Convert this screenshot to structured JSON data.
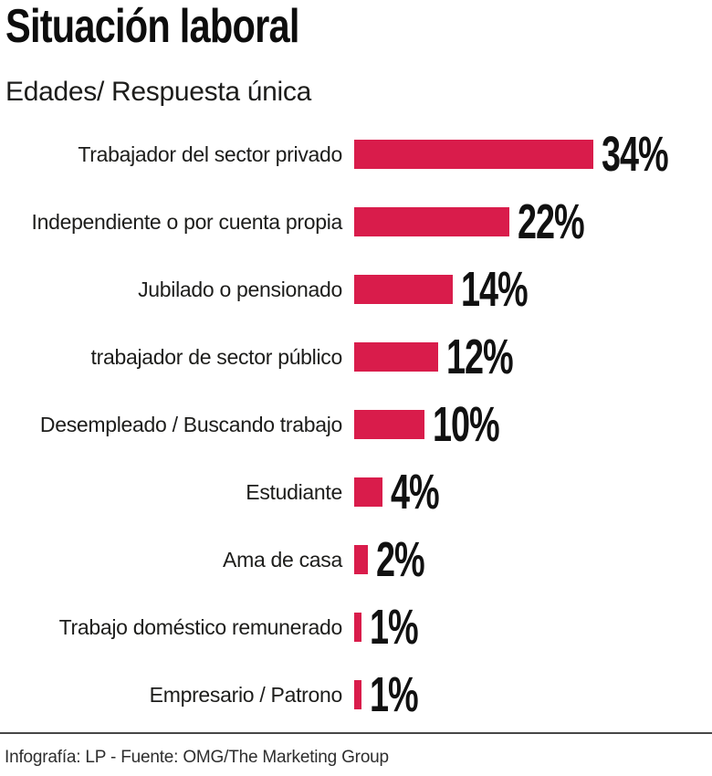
{
  "header": {
    "title": "Situación laboral",
    "subtitle": "Edades/ Respuesta única"
  },
  "chart_data": {
    "type": "bar",
    "orientation": "horizontal",
    "title": "Situación laboral",
    "subtitle": "Edades/ Respuesta única",
    "categories": [
      "Trabajador del sector privado",
      "Independiente o por cuenta propia",
      "Jubilado o pensionado",
      "trabajador de sector público",
      "Desempleado / Buscando trabajo",
      "Estudiante",
      "Ama de casa",
      "Trabajo doméstico remunerado",
      "Empresario / Patrono"
    ],
    "values": [
      34,
      22,
      14,
      12,
      10,
      4,
      2,
      1,
      1
    ],
    "value_suffix": "%",
    "xlim": [
      0,
      34
    ],
    "grid": false,
    "legend": false,
    "colors": {
      "bar": "#d91c4b",
      "label_text": "#1d1d1b",
      "value_text": "#111111",
      "title_text": "#0d0d0d"
    }
  },
  "footer": {
    "credit": "Infografía: LP - Fuente: OMG/The Marketing Group"
  }
}
